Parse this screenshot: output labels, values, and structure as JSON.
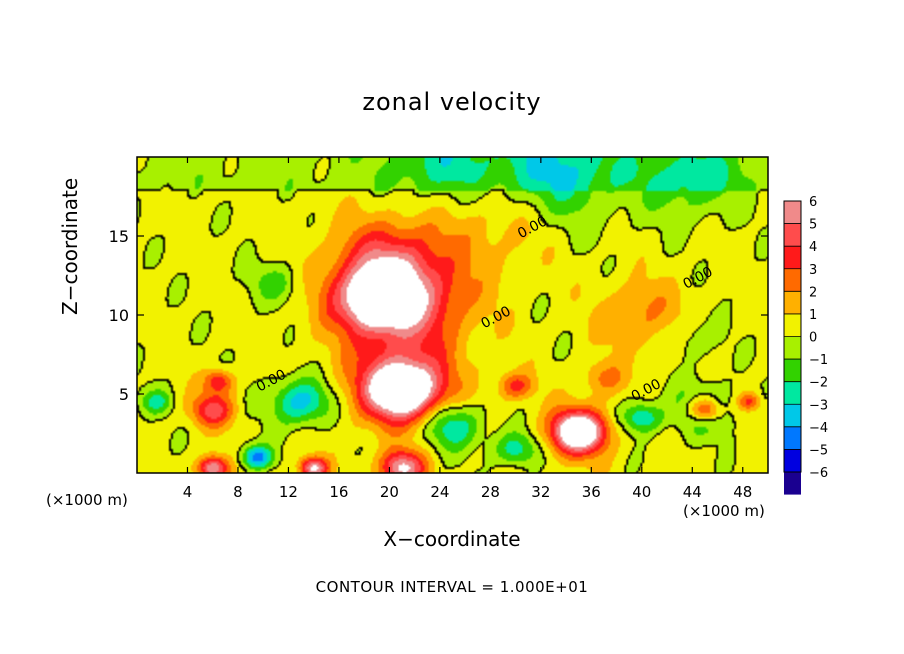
{
  "chart_data": {
    "type": "heatmap",
    "title": "zonal velocity",
    "xlabel": "X−coordinate",
    "ylabel": "Z−coordinate",
    "x_unit_label": "(×1000 m)",
    "x_unit_label_right": "(×1000 m)",
    "footer": "CONTOUR INTERVAL = 1.000E+01",
    "xlim": [
      0,
      50
    ],
    "ylim": [
      0,
      20
    ],
    "x_ticks": [
      {
        "v": 4,
        "label": "4"
      },
      {
        "v": 8,
        "label": "8"
      },
      {
        "v": 12,
        "label": "12"
      },
      {
        "v": 16,
        "label": "16"
      },
      {
        "v": 20,
        "label": "20"
      },
      {
        "v": 24,
        "label": "24"
      },
      {
        "v": 28,
        "label": "28"
      },
      {
        "v": 32,
        "label": "32"
      },
      {
        "v": 36,
        "label": "36"
      },
      {
        "v": 40,
        "label": "40"
      },
      {
        "v": 44,
        "label": "44"
      },
      {
        "v": 48,
        "label": "48"
      }
    ],
    "y_ticks": [
      {
        "v": 5,
        "label": "5"
      },
      {
        "v": 10,
        "label": "10"
      },
      {
        "v": 15,
        "label": "15"
      }
    ],
    "colorbar": {
      "levels": [
        {
          "v": 6,
          "label": "6"
        },
        {
          "v": 5,
          "label": "5"
        },
        {
          "v": 4,
          "label": "4"
        },
        {
          "v": 3,
          "label": "3"
        },
        {
          "v": 2,
          "label": "2"
        },
        {
          "v": 1,
          "label": "1"
        },
        {
          "v": 0,
          "label": "0"
        },
        {
          "v": -1,
          "label": "−1"
        },
        {
          "v": -2,
          "label": "−2"
        },
        {
          "v": -3,
          "label": "−3"
        },
        {
          "v": -4,
          "label": "−4"
        },
        {
          "v": -5,
          "label": "−5"
        },
        {
          "v": -6,
          "label": "−6"
        }
      ],
      "colors": [
        "#f08a8a",
        "#ff4c4c",
        "#ff1a1a",
        "#ff6a00",
        "#ffb000",
        "#f2f200",
        "#a8f000",
        "#32d200",
        "#00e8a0",
        "#00c8e8",
        "#0078ff",
        "#0000e0",
        "#1a0090"
      ]
    },
    "contour_labels": [
      {
        "text": "0.00",
        "x": 31.5,
        "y": 15.3
      },
      {
        "text": "0.00",
        "x": 28.6,
        "y": 9.6
      },
      {
        "text": "0.00",
        "x": 44.6,
        "y": 12.1
      },
      {
        "text": "0.00",
        "x": 10.8,
        "y": 5.6
      },
      {
        "text": "0.00",
        "x": 40.5,
        "y": 5.0
      }
    ],
    "features": [
      {
        "x": 19,
        "y": 11,
        "value": 6,
        "extent": 3.8
      },
      {
        "x": 21,
        "y": 10.8,
        "value": 4.5,
        "extent": 6.5
      },
      {
        "x": 20,
        "y": 13.5,
        "value": 3,
        "extent": 5.5
      },
      {
        "x": 21,
        "y": 5.2,
        "value": 6,
        "extent": 3.2
      },
      {
        "x": 21,
        "y": 5.5,
        "value": 4.5,
        "extent": 5.2
      },
      {
        "x": 35,
        "y": 2.6,
        "value": 6,
        "extent": 2.2
      },
      {
        "x": 35,
        "y": 2.6,
        "value": 4,
        "extent": 3.4
      },
      {
        "x": 45,
        "y": 4,
        "value": 6,
        "extent": 1.8
      },
      {
        "x": 45,
        "y": 4,
        "value": -3.5,
        "extent": 3.0
      },
      {
        "x": 6,
        "y": 4,
        "value": 4,
        "extent": 2.2
      },
      {
        "x": 6.5,
        "y": 5.8,
        "value": 3.5,
        "extent": 1.5
      },
      {
        "x": 11,
        "y": 12,
        "value": -1.8,
        "extent": 2.6
      },
      {
        "x": 13,
        "y": 4.5,
        "value": -4,
        "extent": 3.0
      },
      {
        "x": 25,
        "y": 3,
        "value": -3.5,
        "extent": 3.0
      },
      {
        "x": 30,
        "y": 5.5,
        "value": 3,
        "extent": 1.8
      },
      {
        "x": 30,
        "y": 1.5,
        "value": -3,
        "extent": 2.2
      },
      {
        "x": 37,
        "y": 6,
        "value": 2,
        "extent": 2.2
      },
      {
        "x": 40,
        "y": 3.5,
        "value": -3.5,
        "extent": 2.0
      },
      {
        "x": 48.5,
        "y": 4.5,
        "value": 3,
        "extent": 1.2
      },
      {
        "x": 1.5,
        "y": 4.5,
        "value": -2.5,
        "extent": 1.6
      },
      {
        "x": 21,
        "y": 0.3,
        "value": 6,
        "extent": 2.2
      },
      {
        "x": 6,
        "y": 0.3,
        "value": 6,
        "extent": 1.5
      },
      {
        "x": 14,
        "y": 0.3,
        "value": 6,
        "extent": 1.4
      },
      {
        "x": 9.5,
        "y": 1.0,
        "value": -5,
        "extent": 1.5
      },
      {
        "x": 33,
        "y": 19.0,
        "value": -3,
        "extent": 7.0
      },
      {
        "x": 24,
        "y": 19.6,
        "value": -2,
        "extent": 5.0
      },
      {
        "x": 44,
        "y": 18.5,
        "value": -2.2,
        "extent": 5.0
      },
      {
        "x": 40,
        "y": 10,
        "value": 1.8,
        "extent": 4.5
      },
      {
        "x": 44,
        "y": 8.5,
        "value": -1.2,
        "extent": 3.0
      },
      {
        "x": 29,
        "y": 16,
        "value": 1.5,
        "extent": 6.0
      }
    ]
  }
}
